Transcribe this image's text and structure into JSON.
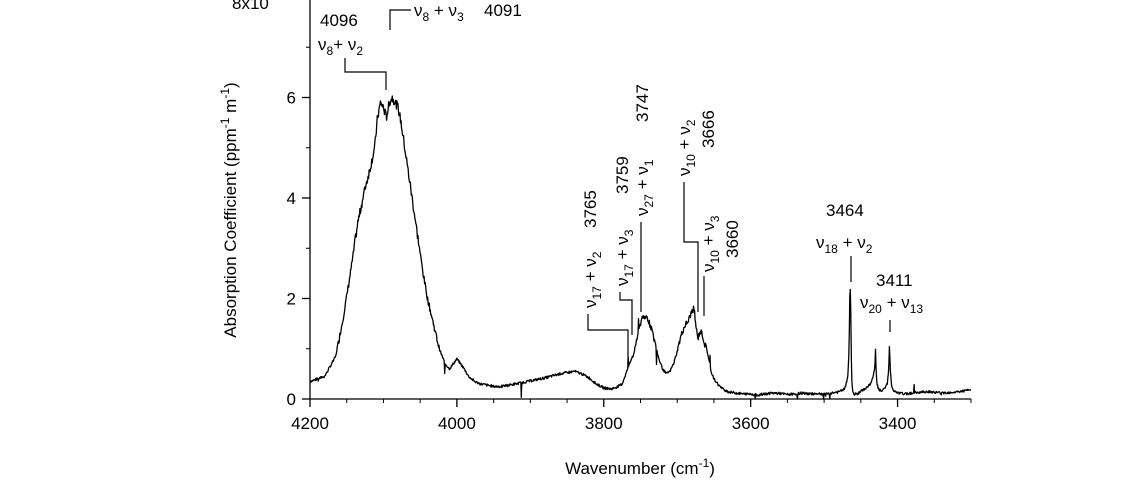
{
  "chart_data": {
    "type": "line",
    "xlabel": "Wavenumber (cm",
    "xlabel_sup": "-1",
    "xlabel_close": ")",
    "ylabel": "Absorption Coefficient (ppm",
    "ylabel_sup1": "-1",
    "ylabel_mid": " m",
    "ylabel_sup2": "-1",
    "ylabel_close": ")",
    "y_scale_prefix": "8x10",
    "xlim": [
      4200,
      3300
    ],
    "ylim": [
      0,
      8
    ],
    "x_reversed": true,
    "x_ticks": [
      "4200",
      "4000",
      "3800",
      "3600",
      "3400"
    ],
    "x_tick_values": [
      4200,
      4000,
      3800,
      3600,
      3400
    ],
    "y_ticks": [
      "0",
      "2",
      "4",
      "6"
    ],
    "y_tick_values": [
      0,
      2,
      4,
      6
    ],
    "grid": false,
    "legend": "none",
    "line_color": "#000000",
    "spectrum": {
      "x": [
        4200,
        4180,
        4165,
        4155,
        4145,
        4135,
        4125,
        4118,
        4112,
        4108,
        4104,
        4100,
        4096,
        4092,
        4088,
        4084,
        4080,
        4076,
        4072,
        4068,
        4064,
        4058,
        4052,
        4046,
        4040,
        4032,
        4024,
        4016,
        4010,
        4004,
        4000,
        3996,
        3990,
        3984,
        3976,
        3968,
        3960,
        3950,
        3940,
        3920,
        3900,
        3880,
        3860,
        3840,
        3830,
        3820,
        3810,
        3800,
        3790,
        3780,
        3775,
        3770,
        3765,
        3762,
        3759,
        3756,
        3752,
        3749,
        3747,
        3745,
        3742,
        3739,
        3735,
        3730,
        3725,
        3720,
        3715,
        3710,
        3705,
        3700,
        3695,
        3690,
        3685,
        3680,
        3677,
        3675,
        3672,
        3669,
        3666,
        3663,
        3660,
        3657,
        3654,
        3650,
        3645,
        3640,
        3635,
        3630,
        3620,
        3610,
        3600,
        3590,
        3580,
        3570,
        3560,
        3550,
        3540,
        3530,
        3520,
        3510,
        3500,
        3490,
        3480,
        3472,
        3468,
        3466,
        3465,
        3464,
        3463,
        3462,
        3460,
        3455,
        3450,
        3445,
        3440,
        3435,
        3431,
        3430,
        3429,
        3428,
        3426,
        3422,
        3418,
        3414,
        3412,
        3411,
        3410,
        3408,
        3405,
        3400,
        3390,
        3380,
        3360,
        3340,
        3320,
        3300
      ],
      "y": [
        0.35,
        0.45,
        0.85,
        1.6,
        2.5,
        3.5,
        4.2,
        4.6,
        5.0,
        5.6,
        5.9,
        5.8,
        5.6,
        5.9,
        6.0,
        5.9,
        5.8,
        5.5,
        5.1,
        4.7,
        4.3,
        3.7,
        3.1,
        2.5,
        2.0,
        1.5,
        1.0,
        0.7,
        0.6,
        0.72,
        0.8,
        0.72,
        0.6,
        0.45,
        0.35,
        0.3,
        0.28,
        0.25,
        0.25,
        0.3,
        0.36,
        0.42,
        0.5,
        0.55,
        0.5,
        0.42,
        0.3,
        0.22,
        0.2,
        0.25,
        0.3,
        0.5,
        0.7,
        0.8,
        0.9,
        1.15,
        1.4,
        1.55,
        1.7,
        1.55,
        1.65,
        1.55,
        1.4,
        1.1,
        0.8,
        0.6,
        0.5,
        0.55,
        0.7,
        0.95,
        1.25,
        1.45,
        1.55,
        1.75,
        1.8,
        1.5,
        1.2,
        1.35,
        1.3,
        1.1,
        1.0,
        0.8,
        0.55,
        0.4,
        0.3,
        0.22,
        0.18,
        0.14,
        0.12,
        0.1,
        0.1,
        0.08,
        0.1,
        0.12,
        0.11,
        0.09,
        0.1,
        0.12,
        0.1,
        0.11,
        0.1,
        0.12,
        0.14,
        0.2,
        0.4,
        1.0,
        2.0,
        2.3,
        0.8,
        0.25,
        0.1,
        0.1,
        0.15,
        0.2,
        0.25,
        0.35,
        0.6,
        1.0,
        0.5,
        0.3,
        0.2,
        0.15,
        0.2,
        0.3,
        0.6,
        1.15,
        0.6,
        0.25,
        0.15,
        0.12,
        0.1,
        0.12,
        0.15,
        0.12,
        0.14,
        0.18
      ]
    },
    "annotations": [
      {
        "id": "4096",
        "text": "4096",
        "label": "ν8+ ν2"
      },
      {
        "id": "4091",
        "text": "4091",
        "label": "ν8 + ν3"
      },
      {
        "id": "3765",
        "text": "3765",
        "label": "ν17 + ν2"
      },
      {
        "id": "3759",
        "text": "3759",
        "label": "ν17 + ν3"
      },
      {
        "id": "3747",
        "text": "3747",
        "label": "ν27 + ν1"
      },
      {
        "id": "3666",
        "text": "3666",
        "label": "ν10 + ν2"
      },
      {
        "id": "3660",
        "text": "3660",
        "label": "ν10 + ν3"
      },
      {
        "id": "3464",
        "text": "3464",
        "label": "ν18 + ν2"
      },
      {
        "id": "3411",
        "text": "3411",
        "label": "ν20 + ν13"
      }
    ]
  }
}
